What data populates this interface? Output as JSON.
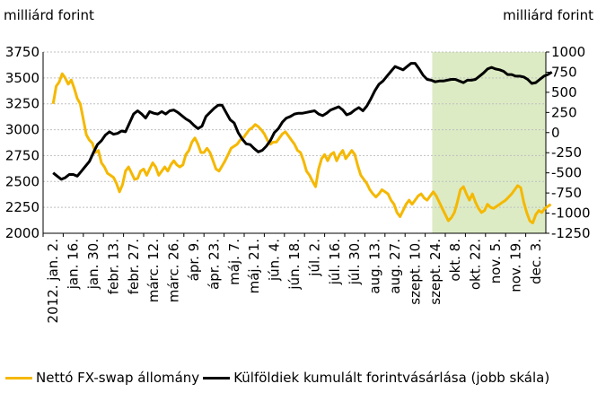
{
  "chart_data": {
    "type": "line",
    "left_unit": "milliárd forint",
    "right_unit": "milliárd forint",
    "left_axis": {
      "min": 2000,
      "max": 3750,
      "ticks": [
        2000,
        2250,
        2500,
        2750,
        3000,
        3250,
        3500,
        3750
      ]
    },
    "right_axis": {
      "min": -1250,
      "max": 1000,
      "ticks": [
        -1250,
        -1000,
        -750,
        -500,
        -250,
        0,
        250,
        500,
        750,
        1000
      ]
    },
    "x_labels": [
      "2012. jan. 2.",
      "jan. 16.",
      "jan. 30.",
      "febr. 13.",
      "febr. 27.",
      "márc. 12.",
      "márc. 26.",
      "ápr. 9.",
      "ápr. 23.",
      "máj. 7.",
      "máj. 21.",
      "jún. 4.",
      "jún. 18.",
      "júl. 2.",
      "júl. 16.",
      "júl. 30.",
      "aug. 13.",
      "aug. 27.",
      "szept. 10.",
      "szept. 24.",
      "okt. 8.",
      "okt. 22.",
      "nov. 5.",
      "nov. 19.",
      "dec. 3."
    ],
    "shaded_region": {
      "from": "szept. 24.",
      "to": "dec. 3.",
      "color": "#dcebc4"
    },
    "grid": true,
    "legend_position": "bottom",
    "series": [
      {
        "name": "Nettó FX-swap állomány",
        "axis": "left",
        "color": "#f5b800",
        "points": [
          [
            0,
            3250
          ],
          [
            0.15,
            3420
          ],
          [
            0.3,
            3460
          ],
          [
            0.45,
            3540
          ],
          [
            0.6,
            3500
          ],
          [
            0.75,
            3440
          ],
          [
            0.9,
            3480
          ],
          [
            1.05,
            3400
          ],
          [
            1.2,
            3300
          ],
          [
            1.35,
            3250
          ],
          [
            1.5,
            3100
          ],
          [
            1.65,
            2950
          ],
          [
            1.8,
            2900
          ],
          [
            1.95,
            2870
          ],
          [
            2.1,
            2780
          ],
          [
            2.25,
            2800
          ],
          [
            2.4,
            2680
          ],
          [
            2.55,
            2640
          ],
          [
            2.7,
            2580
          ],
          [
            2.85,
            2560
          ],
          [
            3.0,
            2540
          ],
          [
            3.15,
            2480
          ],
          [
            3.3,
            2400
          ],
          [
            3.45,
            2470
          ],
          [
            3.6,
            2600
          ],
          [
            3.75,
            2640
          ],
          [
            3.9,
            2580
          ],
          [
            4.05,
            2520
          ],
          [
            4.2,
            2530
          ],
          [
            4.35,
            2600
          ],
          [
            4.5,
            2620
          ],
          [
            4.65,
            2560
          ],
          [
            4.8,
            2620
          ],
          [
            4.95,
            2680
          ],
          [
            5.1,
            2640
          ],
          [
            5.25,
            2560
          ],
          [
            5.4,
            2600
          ],
          [
            5.55,
            2640
          ],
          [
            5.7,
            2600
          ],
          [
            5.85,
            2660
          ],
          [
            6.0,
            2700
          ],
          [
            6.15,
            2660
          ],
          [
            6.3,
            2640
          ],
          [
            6.45,
            2660
          ],
          [
            6.6,
            2760
          ],
          [
            6.75,
            2800
          ],
          [
            6.9,
            2880
          ],
          [
            7.05,
            2920
          ],
          [
            7.2,
            2860
          ],
          [
            7.35,
            2780
          ],
          [
            7.5,
            2780
          ],
          [
            7.65,
            2820
          ],
          [
            7.8,
            2780
          ],
          [
            7.95,
            2700
          ],
          [
            8.1,
            2620
          ],
          [
            8.25,
            2600
          ],
          [
            8.4,
            2650
          ],
          [
            8.55,
            2700
          ],
          [
            8.7,
            2760
          ],
          [
            8.85,
            2820
          ],
          [
            9.0,
            2840
          ],
          [
            9.15,
            2860
          ],
          [
            9.3,
            2900
          ],
          [
            9.45,
            2920
          ],
          [
            9.6,
            2960
          ],
          [
            9.75,
            3000
          ],
          [
            9.9,
            3020
          ],
          [
            10.05,
            3050
          ],
          [
            10.2,
            3030
          ],
          [
            10.35,
            3000
          ],
          [
            10.5,
            2960
          ],
          [
            10.65,
            2900
          ],
          [
            10.8,
            2860
          ],
          [
            10.95,
            2880
          ],
          [
            11.1,
            2880
          ],
          [
            11.25,
            2920
          ],
          [
            11.4,
            2960
          ],
          [
            11.55,
            2980
          ],
          [
            11.7,
            2940
          ],
          [
            11.85,
            2900
          ],
          [
            12.0,
            2860
          ],
          [
            12.15,
            2800
          ],
          [
            12.3,
            2780
          ],
          [
            12.45,
            2700
          ],
          [
            12.6,
            2600
          ],
          [
            12.75,
            2560
          ],
          [
            12.9,
            2500
          ],
          [
            13.05,
            2450
          ],
          [
            13.2,
            2620
          ],
          [
            13.35,
            2720
          ],
          [
            13.5,
            2760
          ],
          [
            13.65,
            2700
          ],
          [
            13.8,
            2760
          ],
          [
            13.95,
            2780
          ],
          [
            14.1,
            2700
          ],
          [
            14.25,
            2760
          ],
          [
            14.4,
            2800
          ],
          [
            14.55,
            2720
          ],
          [
            14.7,
            2760
          ],
          [
            14.85,
            2800
          ],
          [
            15.0,
            2760
          ],
          [
            15.15,
            2650
          ],
          [
            15.3,
            2560
          ],
          [
            15.45,
            2520
          ],
          [
            15.6,
            2480
          ],
          [
            15.75,
            2420
          ],
          [
            15.9,
            2380
          ],
          [
            16.05,
            2350
          ],
          [
            16.2,
            2380
          ],
          [
            16.35,
            2420
          ],
          [
            16.5,
            2400
          ],
          [
            16.65,
            2380
          ],
          [
            16.8,
            2320
          ],
          [
            16.95,
            2280
          ],
          [
            17.1,
            2200
          ],
          [
            17.25,
            2160
          ],
          [
            17.4,
            2220
          ],
          [
            17.55,
            2280
          ],
          [
            17.7,
            2320
          ],
          [
            17.85,
            2280
          ],
          [
            18.0,
            2320
          ],
          [
            18.15,
            2360
          ],
          [
            18.3,
            2380
          ],
          [
            18.45,
            2340
          ],
          [
            18.6,
            2320
          ],
          [
            18.75,
            2360
          ],
          [
            18.9,
            2400
          ],
          [
            19.05,
            2360
          ],
          [
            19.2,
            2300
          ],
          [
            19.35,
            2240
          ],
          [
            19.5,
            2180
          ],
          [
            19.65,
            2120
          ],
          [
            19.8,
            2150
          ],
          [
            19.95,
            2200
          ],
          [
            20.1,
            2300
          ],
          [
            20.25,
            2420
          ],
          [
            20.4,
            2450
          ],
          [
            20.55,
            2380
          ],
          [
            20.7,
            2320
          ],
          [
            20.85,
            2380
          ],
          [
            21.0,
            2300
          ],
          [
            21.15,
            2240
          ],
          [
            21.3,
            2200
          ],
          [
            21.45,
            2220
          ],
          [
            21.6,
            2280
          ],
          [
            21.75,
            2250
          ],
          [
            21.9,
            2240
          ],
          [
            22.05,
            2260
          ],
          [
            22.2,
            2280
          ],
          [
            22.35,
            2300
          ],
          [
            22.5,
            2320
          ],
          [
            22.65,
            2350
          ],
          [
            22.8,
            2380
          ],
          [
            22.95,
            2420
          ],
          [
            23.1,
            2460
          ],
          [
            23.25,
            2440
          ],
          [
            23.4,
            2300
          ],
          [
            23.55,
            2200
          ],
          [
            23.7,
            2120
          ],
          [
            23.85,
            2100
          ],
          [
            24.0,
            2180
          ],
          [
            24.15,
            2220
          ],
          [
            24.3,
            2200
          ],
          [
            24.45,
            2240
          ],
          [
            24.6,
            2260
          ],
          [
            24.75,
            2280
          ]
        ]
      },
      {
        "name": "Külföldiek kumulált forintvásárlása (jobb skála)",
        "axis": "right",
        "color": "#000000",
        "points": [
          [
            0,
            -500
          ],
          [
            0.2,
            -540
          ],
          [
            0.4,
            -580
          ],
          [
            0.6,
            -560
          ],
          [
            0.8,
            -520
          ],
          [
            1.0,
            -520
          ],
          [
            1.2,
            -540
          ],
          [
            1.4,
            -480
          ],
          [
            1.6,
            -420
          ],
          [
            1.8,
            -360
          ],
          [
            2.0,
            -250
          ],
          [
            2.2,
            -150
          ],
          [
            2.4,
            -100
          ],
          [
            2.6,
            -30
          ],
          [
            2.8,
            10
          ],
          [
            3.0,
            -20
          ],
          [
            3.2,
            -10
          ],
          [
            3.4,
            20
          ],
          [
            3.6,
            10
          ],
          [
            3.8,
            120
          ],
          [
            4.0,
            230
          ],
          [
            4.2,
            270
          ],
          [
            4.4,
            230
          ],
          [
            4.6,
            180
          ],
          [
            4.8,
            260
          ],
          [
            5.0,
            240
          ],
          [
            5.2,
            230
          ],
          [
            5.4,
            260
          ],
          [
            5.6,
            230
          ],
          [
            5.8,
            270
          ],
          [
            6.0,
            280
          ],
          [
            6.2,
            250
          ],
          [
            6.4,
            210
          ],
          [
            6.6,
            170
          ],
          [
            6.8,
            140
          ],
          [
            7.0,
            90
          ],
          [
            7.2,
            50
          ],
          [
            7.4,
            80
          ],
          [
            7.6,
            200
          ],
          [
            7.8,
            250
          ],
          [
            8.0,
            300
          ],
          [
            8.2,
            340
          ],
          [
            8.4,
            340
          ],
          [
            8.6,
            250
          ],
          [
            8.8,
            160
          ],
          [
            9.0,
            120
          ],
          [
            9.2,
            0
          ],
          [
            9.4,
            -80
          ],
          [
            9.6,
            -140
          ],
          [
            9.8,
            -150
          ],
          [
            10.0,
            -200
          ],
          [
            10.2,
            -240
          ],
          [
            10.4,
            -220
          ],
          [
            10.6,
            -170
          ],
          [
            10.8,
            -100
          ],
          [
            11.0,
            0
          ],
          [
            11.2,
            50
          ],
          [
            11.4,
            130
          ],
          [
            11.6,
            180
          ],
          [
            11.8,
            200
          ],
          [
            12.0,
            230
          ],
          [
            12.2,
            240
          ],
          [
            12.4,
            240
          ],
          [
            12.6,
            250
          ],
          [
            12.8,
            260
          ],
          [
            13.0,
            270
          ],
          [
            13.2,
            230
          ],
          [
            13.4,
            210
          ],
          [
            13.6,
            240
          ],
          [
            13.8,
            280
          ],
          [
            14.0,
            300
          ],
          [
            14.2,
            320
          ],
          [
            14.4,
            280
          ],
          [
            14.6,
            220
          ],
          [
            14.8,
            240
          ],
          [
            15.0,
            280
          ],
          [
            15.2,
            310
          ],
          [
            15.4,
            270
          ],
          [
            15.6,
            330
          ],
          [
            15.8,
            420
          ],
          [
            16.0,
            520
          ],
          [
            16.2,
            600
          ],
          [
            16.4,
            640
          ],
          [
            16.6,
            700
          ],
          [
            16.8,
            760
          ],
          [
            17.0,
            820
          ],
          [
            17.2,
            800
          ],
          [
            17.4,
            780
          ],
          [
            17.6,
            820
          ],
          [
            17.8,
            860
          ],
          [
            18.0,
            860
          ],
          [
            18.2,
            790
          ],
          [
            18.4,
            710
          ],
          [
            18.6,
            660
          ],
          [
            18.8,
            650
          ],
          [
            19.0,
            630
          ],
          [
            19.2,
            640
          ],
          [
            19.4,
            640
          ],
          [
            19.6,
            650
          ],
          [
            19.8,
            660
          ],
          [
            20.0,
            660
          ],
          [
            20.2,
            640
          ],
          [
            20.4,
            620
          ],
          [
            20.6,
            650
          ],
          [
            20.8,
            650
          ],
          [
            21.0,
            660
          ],
          [
            21.2,
            700
          ],
          [
            21.4,
            740
          ],
          [
            21.6,
            790
          ],
          [
            21.8,
            810
          ],
          [
            22.0,
            790
          ],
          [
            22.2,
            780
          ],
          [
            22.4,
            760
          ],
          [
            22.6,
            720
          ],
          [
            22.8,
            720
          ],
          [
            23.0,
            700
          ],
          [
            23.2,
            700
          ],
          [
            23.4,
            690
          ],
          [
            23.6,
            660
          ],
          [
            23.8,
            610
          ],
          [
            24.0,
            620
          ],
          [
            24.2,
            660
          ],
          [
            24.4,
            700
          ],
          [
            24.6,
            720
          ],
          [
            24.8,
            750
          ]
        ]
      }
    ]
  }
}
